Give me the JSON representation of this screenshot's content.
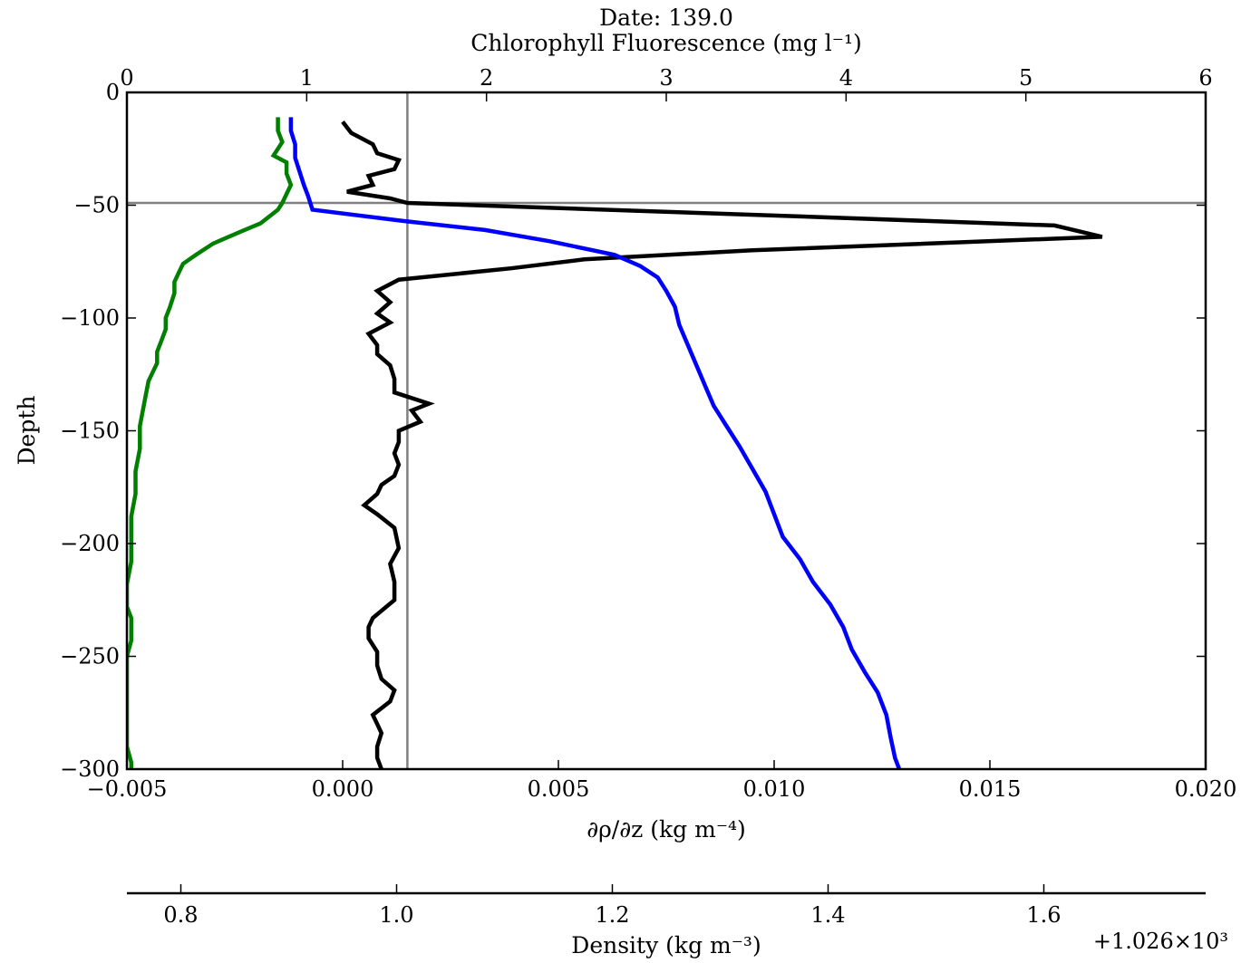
{
  "chart_data": {
    "type": "line",
    "title": "Date: 139.0",
    "ylabel": "Depth",
    "ylim": [
      -300,
      0
    ],
    "yticks": [
      0,
      -50,
      -100,
      -150,
      -200,
      -250,
      -300
    ],
    "ytick_labels": [
      "0",
      "−50",
      "−100",
      "−150",
      "−200",
      "−250",
      "−300"
    ],
    "axes": {
      "bottom": {
        "label": "∂ρ/∂z (kg m⁻⁴)",
        "xlim": [
          -0.005,
          0.02
        ],
        "ticks": [
          -0.005,
          0,
          0.005,
          0.01,
          0.015,
          0.02
        ],
        "tick_labels": [
          "−0.005",
          "0.000",
          "0.005",
          "0.010",
          "0.015",
          "0.020"
        ]
      },
      "top": {
        "label": "Chlorophyll Fluorescence (mg l⁻¹)",
        "xlim": [
          0,
          6
        ],
        "ticks": [
          0,
          1,
          2,
          3,
          4,
          5,
          6
        ],
        "tick_labels": [
          "0",
          "1",
          "2",
          "3",
          "4",
          "5",
          "6"
        ]
      },
      "density": {
        "label": "Density (kg m⁻³)",
        "xlim": [
          0.75,
          1.75
        ],
        "ticks": [
          0.8,
          1.0,
          1.2,
          1.4,
          1.6
        ],
        "tick_labels": [
          "0.8",
          "1.0",
          "1.2",
          "1.4",
          "1.6"
        ],
        "offset_label": "+1.026×10³"
      }
    },
    "reference_lines": {
      "horizontal_depth": -49,
      "vertical_drho_dz": 0.0015
    },
    "series": [
      {
        "color": "#000000",
        "axis": "bottom",
        "points": [
          [
            0.0,
            -13
          ],
          [
            0.0002,
            -18
          ],
          [
            0.0007,
            -23
          ],
          [
            0.0008,
            -27
          ],
          [
            0.0013,
            -30
          ],
          [
            0.0012,
            -34
          ],
          [
            0.0006,
            -37
          ],
          [
            0.0007,
            -41
          ],
          [
            0.0001,
            -44
          ],
          [
            0.0011,
            -47
          ],
          [
            0.0015,
            -49
          ],
          [
            0.0106,
            -55
          ],
          [
            0.0165,
            -59
          ],
          [
            0.0176,
            -64
          ],
          [
            0.0095,
            -70
          ],
          [
            0.0056,
            -74
          ],
          [
            0.0039,
            -78
          ],
          [
            0.0013,
            -83
          ],
          [
            0.0008,
            -88
          ],
          [
            0.0011,
            -93
          ],
          [
            0.0008,
            -98
          ],
          [
            0.0011,
            -102
          ],
          [
            0.0006,
            -107
          ],
          [
            0.0008,
            -112
          ],
          [
            0.0008,
            -116
          ],
          [
            0.0011,
            -121
          ],
          [
            0.0012,
            -127
          ],
          [
            0.0012,
            -133
          ],
          [
            0.002,
            -138
          ],
          [
            0.0016,
            -141
          ],
          [
            0.0018,
            -146
          ],
          [
            0.0013,
            -150
          ],
          [
            0.0013,
            -155
          ],
          [
            0.0012,
            -160
          ],
          [
            0.0013,
            -165
          ],
          [
            0.0012,
            -170
          ],
          [
            0.0009,
            -174
          ],
          [
            0.0008,
            -178
          ],
          [
            0.0005,
            -183
          ],
          [
            0.0008,
            -187
          ],
          [
            0.0012,
            -193
          ],
          [
            0.0013,
            -202
          ],
          [
            0.0011,
            -209
          ],
          [
            0.0012,
            -217
          ],
          [
            0.0012,
            -225
          ],
          [
            0.0007,
            -233
          ],
          [
            0.0006,
            -237
          ],
          [
            0.0006,
            -242
          ],
          [
            0.0008,
            -248
          ],
          [
            0.0008,
            -254
          ],
          [
            0.0009,
            -260
          ],
          [
            0.0012,
            -265
          ],
          [
            0.0011,
            -270
          ],
          [
            0.0007,
            -276
          ],
          [
            0.0008,
            -280
          ],
          [
            0.0009,
            -284
          ],
          [
            0.0008,
            -290
          ],
          [
            0.0008,
            -295
          ],
          [
            0.0009,
            -300
          ]
        ]
      },
      {
        "color": "#0000ff",
        "axis": "bottom",
        "points": [
          [
            -0.0012,
            -11
          ],
          [
            -0.0012,
            -17
          ],
          [
            -0.0011,
            -23
          ],
          [
            -0.0011,
            -29
          ],
          [
            -0.001,
            -35
          ],
          [
            -0.0009,
            -41
          ],
          [
            -0.0008,
            -46
          ],
          [
            -0.0007,
            -52
          ],
          [
            0.0014,
            -57
          ],
          [
            0.0033,
            -61
          ],
          [
            0.0048,
            -66
          ],
          [
            0.0063,
            -72
          ],
          [
            0.0069,
            -77
          ],
          [
            0.0073,
            -82
          ],
          [
            0.0075,
            -88
          ],
          [
            0.0077,
            -95
          ],
          [
            0.0078,
            -103
          ],
          [
            0.008,
            -112
          ],
          [
            0.0082,
            -121
          ],
          [
            0.0084,
            -130
          ],
          [
            0.0086,
            -139
          ],
          [
            0.0089,
            -148
          ],
          [
            0.0092,
            -157
          ],
          [
            0.0095,
            -167
          ],
          [
            0.0098,
            -177
          ],
          [
            0.01,
            -187
          ],
          [
            0.0102,
            -197
          ],
          [
            0.0106,
            -207
          ],
          [
            0.0109,
            -217
          ],
          [
            0.0113,
            -227
          ],
          [
            0.0116,
            -237
          ],
          [
            0.0118,
            -247
          ],
          [
            0.0121,
            -257
          ],
          [
            0.0124,
            -266
          ],
          [
            0.0126,
            -276
          ],
          [
            0.0127,
            -286
          ],
          [
            0.0128,
            -295
          ],
          [
            0.0129,
            -300
          ]
        ]
      },
      {
        "color": "#007f00",
        "axis": "bottom",
        "points": [
          [
            -0.0015,
            -11
          ],
          [
            -0.0015,
            -17
          ],
          [
            -0.0014,
            -22
          ],
          [
            -0.0016,
            -28
          ],
          [
            -0.0013,
            -31
          ],
          [
            -0.0013,
            -36
          ],
          [
            -0.0012,
            -41
          ],
          [
            -0.0013,
            -45
          ],
          [
            -0.0014,
            -49
          ],
          [
            -0.0015,
            -52
          ],
          [
            -0.0019,
            -58
          ],
          [
            -0.0024,
            -62
          ],
          [
            -0.003,
            -67
          ],
          [
            -0.0034,
            -72
          ],
          [
            -0.0037,
            -76
          ],
          [
            -0.0038,
            -80
          ],
          [
            -0.0039,
            -84
          ],
          [
            -0.0039,
            -89
          ],
          [
            -0.004,
            -95
          ],
          [
            -0.0041,
            -100
          ],
          [
            -0.0041,
            -105
          ],
          [
            -0.0042,
            -110
          ],
          [
            -0.0043,
            -115
          ],
          [
            -0.0043,
            -120
          ],
          [
            -0.0045,
            -128
          ],
          [
            -0.0046,
            -138
          ],
          [
            -0.0047,
            -148
          ],
          [
            -0.0047,
            -158
          ],
          [
            -0.0048,
            -168
          ],
          [
            -0.0048,
            -178
          ],
          [
            -0.0049,
            -188
          ],
          [
            -0.0049,
            -198
          ],
          [
            -0.0049,
            -208
          ],
          [
            -0.005,
            -218
          ],
          [
            -0.005,
            -228
          ],
          [
            -0.0049,
            -233
          ],
          [
            -0.0049,
            -243
          ],
          [
            -0.005,
            -250
          ],
          [
            -0.005,
            -260
          ],
          [
            -0.005,
            -270
          ],
          [
            -0.005,
            -280
          ],
          [
            -0.005,
            -290
          ],
          [
            -0.0049,
            -297
          ],
          [
            -0.0049,
            -300
          ]
        ]
      }
    ]
  }
}
